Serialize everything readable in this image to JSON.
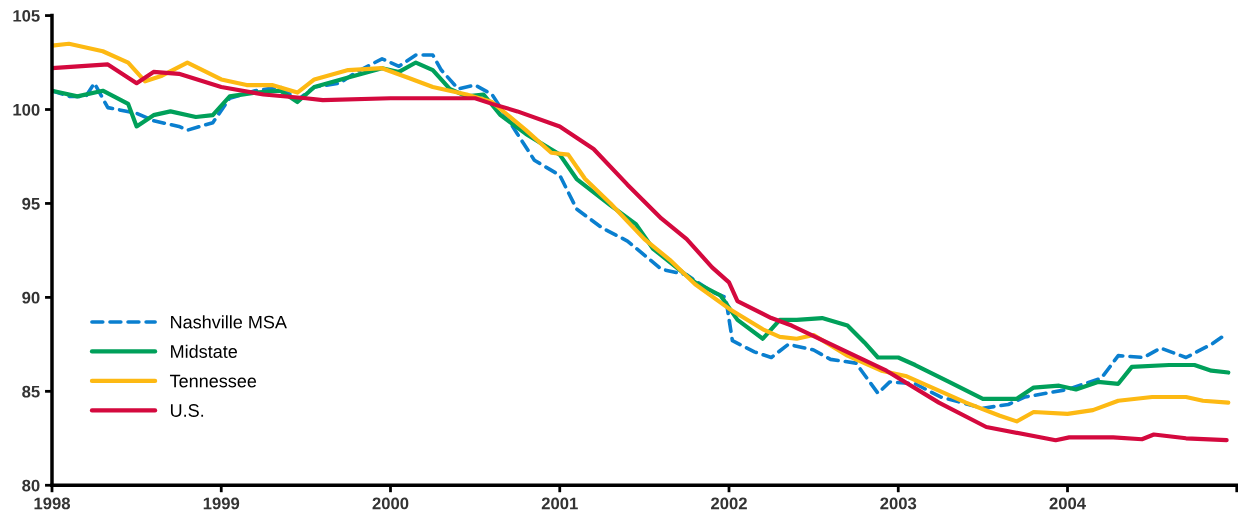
{
  "chart_data": {
    "type": "line",
    "xlim": [
      1998,
      2005
    ],
    "ylim": [
      80,
      105
    ],
    "xticks": [
      1998,
      1999,
      2000,
      2001,
      2002,
      2003,
      2004,
      {
        "value": 2005,
        "label": null
      }
    ],
    "yticks": [
      80,
      85,
      90,
      95,
      100,
      105
    ],
    "grid": false,
    "legend": "left",
    "marker": "none",
    "series": [
      {
        "name": "Nashville MSA",
        "color": "#0a7fcf",
        "line_style": "dashed",
        "x": [
          1998.0,
          1998.1,
          1998.2,
          1998.25,
          1998.33,
          1998.5,
          1998.6,
          1998.75,
          1998.8,
          1998.95,
          1999.05,
          1999.2,
          1999.35,
          1999.45,
          1999.55,
          1999.7,
          1999.8,
          1999.95,
          2000.05,
          2000.15,
          2000.25,
          2000.3,
          2000.4,
          2000.5,
          2000.6,
          2000.75,
          2000.85,
          2001.0,
          2001.1,
          2001.25,
          2001.4,
          2001.6,
          2001.75,
          2001.9,
          2001.98,
          2002.02,
          2002.15,
          2002.25,
          2002.35,
          2002.5,
          2002.6,
          2002.75,
          2002.88,
          2002.95,
          2003.1,
          2003.25,
          2003.5,
          2003.65,
          2003.75,
          2004.0,
          2004.2,
          2004.3,
          2004.45,
          2004.55,
          2004.7,
          2004.85,
          2004.93
        ],
        "values": [
          101.0,
          100.7,
          100.7,
          101.4,
          100.1,
          99.8,
          99.4,
          99.1,
          98.9,
          99.3,
          100.6,
          101.0,
          101.2,
          100.5,
          101.2,
          101.4,
          102.0,
          102.7,
          102.3,
          102.9,
          102.9,
          102.1,
          101.1,
          101.3,
          100.8,
          98.7,
          97.3,
          96.5,
          94.7,
          93.7,
          93.0,
          91.5,
          91.2,
          90.3,
          90.0,
          87.7,
          87.1,
          86.8,
          87.5,
          87.2,
          86.7,
          86.5,
          84.9,
          85.5,
          85.4,
          84.7,
          84.1,
          84.3,
          84.7,
          85.1,
          85.7,
          86.9,
          86.8,
          87.3,
          86.8,
          87.5,
          88.0
        ]
      },
      {
        "name": "Midstate",
        "color": "#00a05a",
        "line_style": "solid",
        "x": [
          1998.0,
          1998.15,
          1998.3,
          1998.45,
          1998.5,
          1998.6,
          1998.7,
          1998.85,
          1998.95,
          1999.05,
          1999.2,
          1999.35,
          1999.45,
          1999.55,
          1999.75,
          1999.95,
          2000.05,
          2000.15,
          2000.25,
          2000.35,
          2000.45,
          2000.55,
          2000.65,
          2000.8,
          2001.0,
          2001.1,
          2001.3,
          2001.45,
          2001.55,
          2001.8,
          2001.95,
          2002.05,
          2002.2,
          2002.3,
          2002.4,
          2002.55,
          2002.7,
          2002.8,
          2002.88,
          2003.0,
          2003.1,
          2003.3,
          2003.5,
          2003.7,
          2003.8,
          2003.95,
          2004.05,
          2004.18,
          2004.3,
          2004.38,
          2004.6,
          2004.75,
          2004.85,
          2004.95
        ],
        "values": [
          101.0,
          100.7,
          101.0,
          100.3,
          99.1,
          99.7,
          99.9,
          99.6,
          99.7,
          100.7,
          100.9,
          101.0,
          100.4,
          101.2,
          101.7,
          102.2,
          102.0,
          102.5,
          102.1,
          101.1,
          100.7,
          100.8,
          99.7,
          98.7,
          97.6,
          96.3,
          94.9,
          93.9,
          92.6,
          90.8,
          90.1,
          88.8,
          87.8,
          88.8,
          88.8,
          88.9,
          88.5,
          87.6,
          86.8,
          86.8,
          86.4,
          85.5,
          84.6,
          84.6,
          85.2,
          85.3,
          85.1,
          85.5,
          85.4,
          86.3,
          86.4,
          86.4,
          86.1,
          86.0
        ]
      },
      {
        "name": "Tennessee",
        "color": "#fdb913",
        "line_style": "solid",
        "x": [
          1998.0,
          1998.1,
          1998.3,
          1998.45,
          1998.55,
          1998.65,
          1998.8,
          1999.0,
          1999.15,
          1999.3,
          1999.45,
          1999.55,
          1999.75,
          1999.95,
          2000.1,
          2000.25,
          2000.45,
          2000.6,
          2000.8,
          2000.95,
          2001.05,
          2001.15,
          2001.3,
          2001.5,
          2001.65,
          2001.8,
          2002.0,
          2002.2,
          2002.3,
          2002.4,
          2002.5,
          2002.7,
          2002.9,
          2003.05,
          2003.2,
          2003.4,
          2003.6,
          2003.7,
          2003.8,
          2004.0,
          2004.15,
          2004.3,
          2004.5,
          2004.7,
          2004.8,
          2004.95
        ],
        "values": [
          103.4,
          103.5,
          103.1,
          102.5,
          101.5,
          101.8,
          102.5,
          101.6,
          101.3,
          101.3,
          100.9,
          101.6,
          102.1,
          102.2,
          101.7,
          101.2,
          100.8,
          100.4,
          98.9,
          97.7,
          97.6,
          96.3,
          95.0,
          93.1,
          92.0,
          90.7,
          89.4,
          88.3,
          87.9,
          87.8,
          88.0,
          86.9,
          86.1,
          85.8,
          85.2,
          84.4,
          83.7,
          83.4,
          83.9,
          83.8,
          84.0,
          84.5,
          84.7,
          84.7,
          84.5,
          84.4
        ]
      },
      {
        "name": "U.S.",
        "color": "#d4093e",
        "line_style": "solid",
        "x": [
          1998.0,
          1998.33,
          1998.5,
          1998.6,
          1998.75,
          1999.0,
          1999.25,
          1999.5,
          1999.6,
          2000.0,
          2000.5,
          2000.6,
          2000.75,
          2001.0,
          2001.2,
          2001.4,
          2001.6,
          2001.75,
          2001.9,
          2002.0,
          2002.05,
          2002.25,
          2002.37,
          2002.93,
          2003.24,
          2003.52,
          2003.93,
          2004.01,
          2004.27,
          2004.44,
          2004.51,
          2004.7,
          2004.94
        ],
        "values": [
          102.2,
          102.4,
          101.4,
          102.0,
          101.9,
          101.2,
          100.8,
          100.6,
          100.5,
          100.6,
          100.6,
          100.3,
          99.9,
          99.1,
          97.9,
          96.0,
          94.2,
          93.1,
          91.6,
          90.8,
          89.8,
          88.9,
          88.5,
          86.1,
          84.4,
          83.1,
          82.4,
          82.55,
          82.55,
          82.45,
          82.7,
          82.5,
          82.4
        ]
      }
    ]
  }
}
